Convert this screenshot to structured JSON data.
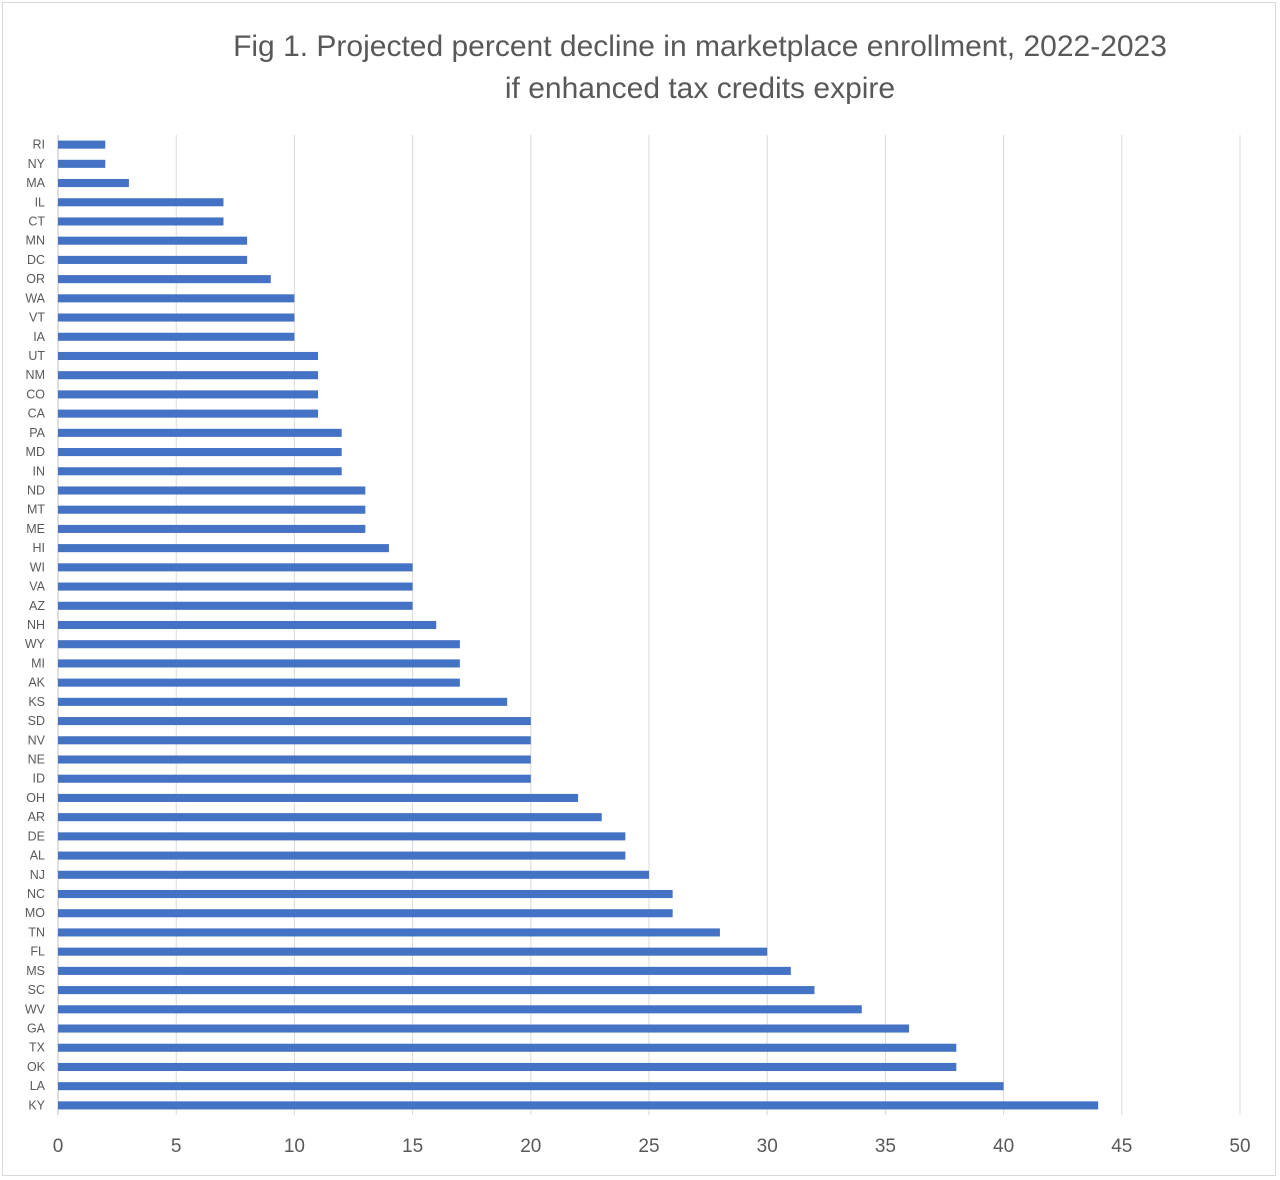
{
  "chart_data": {
    "type": "bar",
    "orientation": "horizontal",
    "title_line1": "Fig 1. Projected percent decline in marketplace enrollment, 2022-2023",
    "title_line2": "if enhanced tax credits expire",
    "xlabel": "",
    "ylabel": "",
    "xlim": [
      0,
      50
    ],
    "xticks": [
      "0",
      "5",
      "10",
      "15",
      "20",
      "25",
      "30",
      "35",
      "40",
      "45",
      "50"
    ],
    "grid": "vertical",
    "bar_color": "#4472C4",
    "categories": [
      "RI",
      "NY",
      "MA",
      "IL",
      "CT",
      "MN",
      "DC",
      "OR",
      "WA",
      "VT",
      "IA",
      "UT",
      "NM",
      "CO",
      "CA",
      "PA",
      "MD",
      "IN",
      "ND",
      "MT",
      "ME",
      "HI",
      "WI",
      "VA",
      "AZ",
      "NH",
      "WY",
      "MI",
      "AK",
      "KS",
      "SD",
      "NV",
      "NE",
      "ID",
      "OH",
      "AR",
      "DE",
      "AL",
      "NJ",
      "NC",
      "MO",
      "TN",
      "FL",
      "MS",
      "SC",
      "WV",
      "GA",
      "TX",
      "OK",
      "LA",
      "KY"
    ],
    "values": [
      2,
      2,
      3,
      7,
      7,
      8,
      8,
      9,
      10,
      10,
      10,
      11,
      11,
      11,
      11,
      12,
      12,
      12,
      13,
      13,
      13,
      14,
      15,
      15,
      15,
      16,
      17,
      17,
      17,
      19,
      20,
      20,
      20,
      20,
      22,
      23,
      24,
      24,
      25,
      26,
      26,
      28,
      30,
      31,
      32,
      34,
      36,
      38,
      38,
      40,
      44
    ]
  }
}
